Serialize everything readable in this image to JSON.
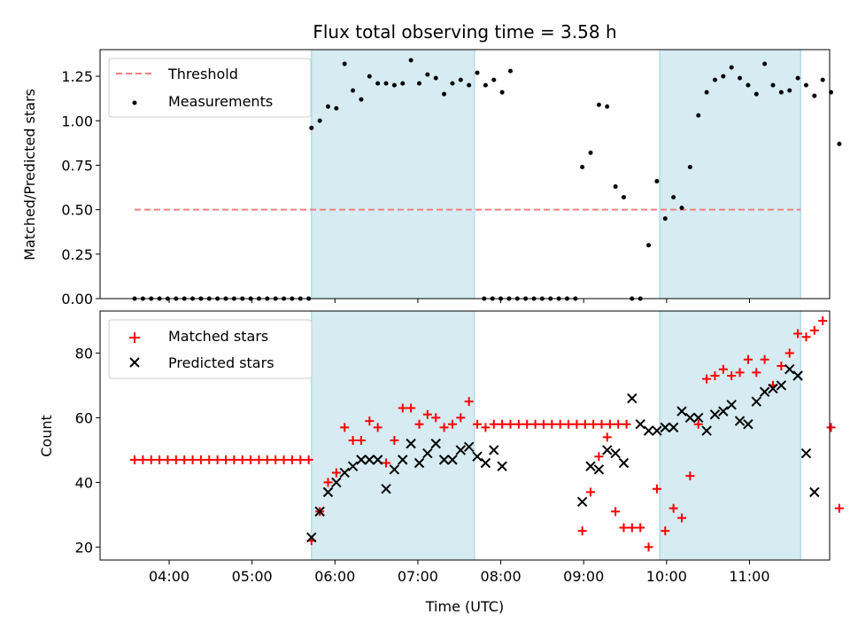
{
  "chart_data": [
    {
      "type": "scatter",
      "title": "Flux total observing time = 3.58 h",
      "xlabel": "",
      "ylabel": "Matched/Predicted stars",
      "ylim": [
        0,
        1.4
      ],
      "yticks": [
        "0.00",
        "0.25",
        "0.50",
        "0.75",
        "1.00",
        "1.25"
      ],
      "xlim": [
        "03:10",
        "11:58"
      ],
      "shaded_intervals": [
        [
          "05:43",
          "07:41"
        ],
        [
          "09:55",
          "11:37"
        ]
      ],
      "legend": {
        "position": "top-left",
        "entries": [
          "Threshold",
          "Measurements"
        ]
      },
      "threshold": {
        "name": "Threshold",
        "value": 0.5,
        "x_range": [
          "03:35",
          "11:37"
        ],
        "color": "#f08080",
        "style": "dashed"
      },
      "series": [
        {
          "name": "Measurements",
          "color": "#000000",
          "marker": "dot",
          "points": [
            [
              "03:35",
              0
            ],
            [
              "03:41",
              0
            ],
            [
              "03:47",
              0
            ],
            [
              "03:53",
              0
            ],
            [
              "03:59",
              0
            ],
            [
              "04:05",
              0
            ],
            [
              "04:11",
              0
            ],
            [
              "04:17",
              0
            ],
            [
              "04:23",
              0
            ],
            [
              "04:29",
              0
            ],
            [
              "04:35",
              0
            ],
            [
              "04:41",
              0
            ],
            [
              "04:47",
              0
            ],
            [
              "04:53",
              0
            ],
            [
              "04:59",
              0
            ],
            [
              "05:05",
              0
            ],
            [
              "05:11",
              0
            ],
            [
              "05:17",
              0
            ],
            [
              "05:23",
              0
            ],
            [
              "05:29",
              0
            ],
            [
              "05:35",
              0
            ],
            [
              "05:41",
              0
            ],
            [
              "05:43",
              0.96
            ],
            [
              "05:49",
              1.0
            ],
            [
              "05:55",
              1.08
            ],
            [
              "06:01",
              1.07
            ],
            [
              "06:07",
              1.32
            ],
            [
              "06:13",
              1.17
            ],
            [
              "06:19",
              1.12
            ],
            [
              "06:25",
              1.25
            ],
            [
              "06:31",
              1.21
            ],
            [
              "06:37",
              1.21
            ],
            [
              "06:43",
              1.2
            ],
            [
              "06:49",
              1.21
            ],
            [
              "06:55",
              1.34
            ],
            [
              "07:01",
              1.21
            ],
            [
              "07:07",
              1.26
            ],
            [
              "07:13",
              1.24
            ],
            [
              "07:19",
              1.15
            ],
            [
              "07:25",
              1.21
            ],
            [
              "07:31",
              1.23
            ],
            [
              "07:37",
              1.2
            ],
            [
              "07:43",
              1.27
            ],
            [
              "07:49",
              1.2
            ],
            [
              "07:55",
              1.23
            ],
            [
              "08:01",
              1.16
            ],
            [
              "08:07",
              1.28
            ],
            [
              "07:48",
              0
            ],
            [
              "07:54",
              0
            ],
            [
              "08:00",
              0
            ],
            [
              "08:06",
              0
            ],
            [
              "08:12",
              0
            ],
            [
              "08:18",
              0
            ],
            [
              "08:24",
              0
            ],
            [
              "08:30",
              0
            ],
            [
              "08:36",
              0
            ],
            [
              "08:42",
              0
            ],
            [
              "08:48",
              0
            ],
            [
              "08:54",
              0
            ],
            [
              "08:59",
              0.74
            ],
            [
              "09:05",
              0.82
            ],
            [
              "09:11",
              1.09
            ],
            [
              "09:17",
              1.08
            ],
            [
              "09:23",
              0.63
            ],
            [
              "09:29",
              0.57
            ],
            [
              "09:35",
              0
            ],
            [
              "09:41",
              0
            ],
            [
              "09:47",
              0.3
            ],
            [
              "09:53",
              0.66
            ],
            [
              "09:59",
              0.45
            ],
            [
              "10:05",
              0.57
            ],
            [
              "10:11",
              0.51
            ],
            [
              "10:17",
              0.74
            ],
            [
              "10:23",
              1.03
            ],
            [
              "10:29",
              1.16
            ],
            [
              "10:35",
              1.23
            ],
            [
              "10:41",
              1.25
            ],
            [
              "10:47",
              1.3
            ],
            [
              "10:53",
              1.24
            ],
            [
              "10:59",
              1.2
            ],
            [
              "11:05",
              1.15
            ],
            [
              "11:11",
              1.32
            ],
            [
              "11:17",
              1.2
            ],
            [
              "11:23",
              1.16
            ],
            [
              "11:29",
              1.17
            ],
            [
              "11:35",
              1.24
            ],
            [
              "11:41",
              1.2
            ],
            [
              "11:47",
              1.14
            ],
            [
              "11:53",
              1.23
            ],
            [
              "11:59",
              1.16
            ],
            [
              "12:05",
              0.87
            ]
          ]
        }
      ]
    },
    {
      "type": "scatter",
      "title": "",
      "xlabel": "Time (UTC)",
      "ylabel": "Count",
      "ylim": [
        16,
        93
      ],
      "yticks": [
        "20",
        "40",
        "60",
        "80"
      ],
      "xticks": [
        "04:00",
        "05:00",
        "06:00",
        "07:00",
        "08:00",
        "09:00",
        "10:00",
        "11:00"
      ],
      "xlim": [
        "03:10",
        "11:58"
      ],
      "shaded_intervals": [
        [
          "05:43",
          "07:41"
        ],
        [
          "09:55",
          "11:37"
        ]
      ],
      "legend": {
        "position": "top-left",
        "entries": [
          "Matched stars",
          "Predicted stars"
        ]
      },
      "series": [
        {
          "name": "Matched stars",
          "color": "#ff0000",
          "marker": "plus",
          "points": [
            [
              "03:35",
              47
            ],
            [
              "03:41",
              47
            ],
            [
              "03:47",
              47
            ],
            [
              "03:53",
              47
            ],
            [
              "03:59",
              47
            ],
            [
              "04:05",
              47
            ],
            [
              "04:11",
              47
            ],
            [
              "04:17",
              47
            ],
            [
              "04:23",
              47
            ],
            [
              "04:29",
              47
            ],
            [
              "04:35",
              47
            ],
            [
              "04:41",
              47
            ],
            [
              "04:47",
              47
            ],
            [
              "04:53",
              47
            ],
            [
              "04:59",
              47
            ],
            [
              "05:05",
              47
            ],
            [
              "05:11",
              47
            ],
            [
              "05:17",
              47
            ],
            [
              "05:23",
              47
            ],
            [
              "05:29",
              47
            ],
            [
              "05:35",
              47
            ],
            [
              "05:41",
              47
            ],
            [
              "05:43",
              22
            ],
            [
              "05:49",
              31
            ],
            [
              "05:55",
              40
            ],
            [
              "06:01",
              43
            ],
            [
              "06:07",
              57
            ],
            [
              "06:13",
              53
            ],
            [
              "06:19",
              53
            ],
            [
              "06:25",
              59
            ],
            [
              "06:31",
              57
            ],
            [
              "06:37",
              46
            ],
            [
              "06:43",
              53
            ],
            [
              "06:49",
              63
            ],
            [
              "06:55",
              63
            ],
            [
              "07:01",
              58
            ],
            [
              "07:07",
              61
            ],
            [
              "07:13",
              60
            ],
            [
              "07:19",
              57
            ],
            [
              "07:25",
              58
            ],
            [
              "07:31",
              60
            ],
            [
              "07:37",
              65
            ],
            [
              "07:43",
              58
            ],
            [
              "07:49",
              57
            ],
            [
              "07:55",
              58
            ],
            [
              "08:01",
              58
            ],
            [
              "08:07",
              58
            ],
            [
              "08:13",
              58
            ],
            [
              "08:19",
              58
            ],
            [
              "08:25",
              58
            ],
            [
              "08:31",
              58
            ],
            [
              "08:37",
              58
            ],
            [
              "08:43",
              58
            ],
            [
              "08:49",
              58
            ],
            [
              "08:55",
              58
            ],
            [
              "09:01",
              58
            ],
            [
              "09:07",
              58
            ],
            [
              "09:13",
              58
            ],
            [
              "09:19",
              58
            ],
            [
              "09:25",
              58
            ],
            [
              "09:31",
              58
            ],
            [
              "08:59",
              25
            ],
            [
              "09:05",
              37
            ],
            [
              "09:11",
              48
            ],
            [
              "09:17",
              54
            ],
            [
              "09:23",
              31
            ],
            [
              "09:29",
              26
            ],
            [
              "09:35",
              26
            ],
            [
              "09:41",
              26
            ],
            [
              "09:47",
              20
            ],
            [
              "09:53",
              38
            ],
            [
              "09:59",
              25
            ],
            [
              "10:05",
              32
            ],
            [
              "10:11",
              29
            ],
            [
              "10:17",
              42
            ],
            [
              "10:23",
              58
            ],
            [
              "10:29",
              72
            ],
            [
              "10:35",
              73
            ],
            [
              "10:41",
              75
            ],
            [
              "10:47",
              73
            ],
            [
              "10:53",
              74
            ],
            [
              "10:59",
              78
            ],
            [
              "11:05",
              74
            ],
            [
              "11:11",
              78
            ],
            [
              "11:17",
              70
            ],
            [
              "11:23",
              76
            ],
            [
              "11:29",
              80
            ],
            [
              "11:35",
              86
            ],
            [
              "11:41",
              85
            ],
            [
              "11:47",
              87
            ],
            [
              "11:53",
              90
            ],
            [
              "11:59",
              57
            ],
            [
              "12:05",
              32
            ]
          ]
        },
        {
          "name": "Predicted stars",
          "color": "#000000",
          "marker": "x",
          "points": [
            [
              "05:43",
              23
            ],
            [
              "05:49",
              31
            ],
            [
              "05:55",
              37
            ],
            [
              "06:01",
              40
            ],
            [
              "06:07",
              43
            ],
            [
              "06:13",
              45
            ],
            [
              "06:19",
              47
            ],
            [
              "06:25",
              47
            ],
            [
              "06:31",
              47
            ],
            [
              "06:37",
              38
            ],
            [
              "06:43",
              44
            ],
            [
              "06:49",
              47
            ],
            [
              "06:55",
              52
            ],
            [
              "07:01",
              46
            ],
            [
              "07:07",
              49
            ],
            [
              "07:13",
              52
            ],
            [
              "07:19",
              47
            ],
            [
              "07:25",
              47
            ],
            [
              "07:31",
              50
            ],
            [
              "07:37",
              51
            ],
            [
              "07:43",
              48
            ],
            [
              "07:49",
              46
            ],
            [
              "07:55",
              50
            ],
            [
              "08:01",
              45
            ],
            [
              "08:59",
              34
            ],
            [
              "09:05",
              45
            ],
            [
              "09:11",
              44
            ],
            [
              "09:17",
              50
            ],
            [
              "09:23",
              49
            ],
            [
              "09:29",
              46
            ],
            [
              "09:35",
              66
            ],
            [
              "09:41",
              58
            ],
            [
              "09:47",
              56
            ],
            [
              "09:53",
              56
            ],
            [
              "09:59",
              57
            ],
            [
              "10:05",
              57
            ],
            [
              "10:11",
              62
            ],
            [
              "10:17",
              60
            ],
            [
              "10:23",
              60
            ],
            [
              "10:29",
              56
            ],
            [
              "10:35",
              61
            ],
            [
              "10:41",
              62
            ],
            [
              "10:47",
              64
            ],
            [
              "10:53",
              59
            ],
            [
              "10:59",
              58
            ],
            [
              "11:05",
              65
            ],
            [
              "11:11",
              68
            ],
            [
              "11:17",
              69
            ],
            [
              "11:23",
              70
            ],
            [
              "11:29",
              75
            ],
            [
              "11:35",
              73
            ],
            [
              "11:41",
              49
            ],
            [
              "11:47",
              37
            ]
          ]
        }
      ]
    }
  ]
}
